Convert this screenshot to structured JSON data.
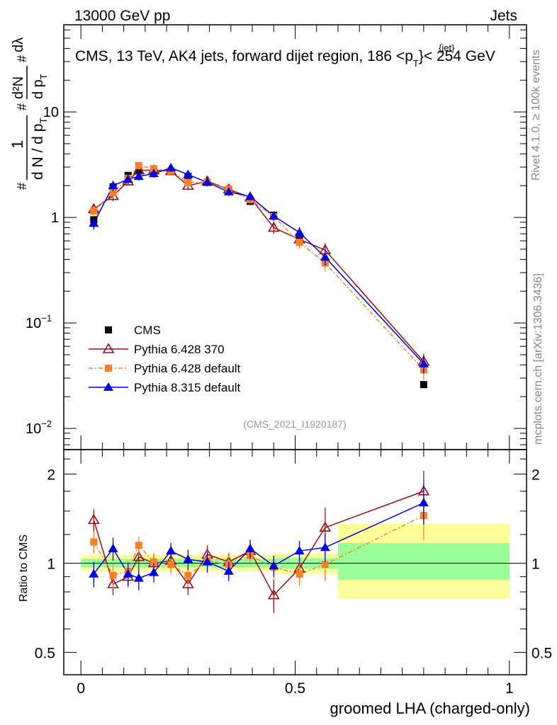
{
  "header": {
    "left": "13000 GeV pp",
    "right": "Jets"
  },
  "side": {
    "rivet": "Rivet 4.1.0, ≥ 100k events",
    "mcplots": "mcplots.cern.ch [arXiv:1306.3436]"
  },
  "ylabel_main": {
    "num": "1",
    "den": "d N / d p",
    "den_sub": "T",
    "deriv_num": "d²N",
    "deriv_den": "d p",
    "deriv_den_sub": "T",
    "lambda": "dλ",
    "hash": "#"
  },
  "chart_data": [
    {
      "id": "main",
      "type": "line",
      "yscale": "log",
      "title": "CMS, 13 TeV, AK4 jets, forward dijet region, 186 <p",
      "title_sup": "{jet}",
      "title_sub": "T",
      "title_tail": "}< 254 GeV",
      "watermark": "(CMS_2021_I1920187)",
      "xlim": [
        -0.04,
        1.04
      ],
      "ylim": [
        0.0063,
        67
      ],
      "ytick_labels": [
        {
          "base": "10",
          "exp": "−2",
          "value": 0.01
        },
        {
          "base": "10",
          "exp": "−1",
          "value": 0.1
        },
        {
          "base": "1",
          "exp": "",
          "value": 1
        },
        {
          "base": "10",
          "exp": "",
          "value": 10
        }
      ],
      "legend": [
        {
          "label": "CMS",
          "series": "cms"
        },
        {
          "label": "Pythia 6.428 370",
          "series": "p370"
        },
        {
          "label": "Pythia 6.428 default",
          "series": "p6def"
        },
        {
          "label": "Pythia 8.315 default",
          "series": "p8"
        }
      ],
      "x": [
        0.03,
        0.075,
        0.11,
        0.135,
        0.17,
        0.21,
        0.25,
        0.295,
        0.345,
        0.395,
        0.45,
        0.51,
        0.57,
        0.8
      ],
      "series": [
        {
          "name": "CMS",
          "key": "cms",
          "color": "#000000",
          "marker": "square",
          "values": [
            0.95,
            1.95,
            2.5,
            2.75,
            2.85,
            2.75,
            2.45,
            2.15,
            1.85,
            1.42,
            1.05,
            0.65,
            0.38,
            0.026
          ]
        },
        {
          "name": "Pythia 6.428 370",
          "key": "p370",
          "color": "#9b0f1a",
          "marker": "triangle-open",
          "values": [
            1.2,
            1.6,
            2.2,
            2.8,
            2.8,
            2.75,
            2.0,
            2.2,
            1.85,
            1.55,
            0.8,
            0.62,
            0.49,
            0.043
          ],
          "err": [
            0.15,
            0.18,
            0.2,
            0.25,
            0.22,
            0.22,
            0.18,
            0.18,
            0.15,
            0.13,
            0.1,
            0.08,
            0.08,
            0.008
          ]
        },
        {
          "name": "Pythia 6.428 default",
          "key": "p6def",
          "color": "#ff7f27",
          "marker": "square",
          "values": [
            1.15,
            1.72,
            2.35,
            3.1,
            2.9,
            2.75,
            2.15,
            2.15,
            1.85,
            1.48,
            1.02,
            0.58,
            0.37,
            0.036
          ],
          "err": [
            0.13,
            0.17,
            0.2,
            0.25,
            0.22,
            0.2,
            0.18,
            0.18,
            0.15,
            0.13,
            0.1,
            0.07,
            0.06,
            0.007
          ]
        },
        {
          "name": "Pythia 8.315 default",
          "key": "p8",
          "color": "#0000e6",
          "marker": "triangle",
          "values": [
            0.88,
            2.0,
            2.3,
            2.45,
            2.6,
            2.95,
            2.55,
            2.15,
            1.75,
            1.58,
            1.03,
            0.72,
            0.42,
            0.041
          ],
          "err": [
            0.11,
            0.22,
            0.2,
            0.22,
            0.22,
            0.25,
            0.2,
            0.18,
            0.15,
            0.14,
            0.1,
            0.09,
            0.07,
            0.008
          ]
        }
      ]
    },
    {
      "id": "ratio",
      "type": "line",
      "yscale": "log",
      "ylabel": "Ratio to CMS",
      "xlabel": "groomed LHA (charged-only)",
      "xlim": [
        -0.04,
        1.04
      ],
      "ylim": [
        0.42,
        2.42
      ],
      "ytick_labels": [
        {
          "label": "0.5",
          "value": 0.5
        },
        {
          "label": "1",
          "value": 1
        },
        {
          "label": "2",
          "value": 2
        }
      ],
      "xtick_labels": [
        {
          "label": "0",
          "value": 0
        },
        {
          "label": "0.5",
          "value": 0.5
        },
        {
          "label": "1",
          "value": 1
        }
      ],
      "bands": [
        {
          "x0": 0.0,
          "x1": 0.45,
          "yellow": [
            0.94,
            1.07
          ],
          "green": [
            0.97,
            1.035
          ]
        },
        {
          "x0": 0.45,
          "x1": 0.6,
          "yellow": [
            0.92,
            1.08
          ],
          "green": [
            0.96,
            1.04
          ]
        },
        {
          "x0": 0.6,
          "x1": 1.0,
          "yellow": [
            0.76,
            1.36
          ],
          "green": [
            0.88,
            1.17
          ]
        }
      ],
      "band_colors": {
        "yellow": "#ffff99",
        "green": "#99ff99"
      },
      "x": [
        0.03,
        0.075,
        0.11,
        0.135,
        0.17,
        0.21,
        0.25,
        0.295,
        0.345,
        0.395,
        0.45,
        0.51,
        0.57,
        0.8
      ],
      "series": [
        {
          "name": "Pythia 6.428 370",
          "key": "p370",
          "color": "#9b0f1a",
          "marker": "triangle-open",
          "values": [
            1.4,
            0.85,
            0.9,
            1.05,
            1.0,
            1.02,
            0.85,
            1.07,
            1.01,
            1.1,
            0.78,
            0.96,
            1.32,
            1.75
          ],
          "err": [
            0.12,
            0.07,
            0.07,
            0.08,
            0.07,
            0.07,
            0.07,
            0.08,
            0.07,
            0.07,
            0.1,
            0.08,
            0.22,
            0.3
          ]
        },
        {
          "name": "Pythia 6.428 default",
          "key": "p6def",
          "color": "#ff7f27",
          "marker": "square",
          "values": [
            1.18,
            0.91,
            0.94,
            1.15,
            1.01,
            0.99,
            0.91,
            1.02,
            0.99,
            1.06,
            0.97,
            0.92,
            0.99,
            1.45
          ],
          "err": [
            0.1,
            0.09,
            0.08,
            0.08,
            0.07,
            0.07,
            0.08,
            0.08,
            0.07,
            0.07,
            0.08,
            0.08,
            0.12,
            0.25
          ]
        },
        {
          "name": "Pythia 8.315 default",
          "key": "p8",
          "color": "#0000e6",
          "marker": "triangle",
          "values": [
            0.92,
            1.12,
            0.92,
            0.89,
            0.93,
            1.1,
            1.03,
            1.01,
            0.94,
            1.12,
            0.98,
            1.1,
            1.13,
            1.6
          ],
          "err": [
            0.09,
            0.1,
            0.08,
            0.08,
            0.07,
            0.07,
            0.08,
            0.08,
            0.07,
            0.08,
            0.08,
            0.09,
            0.12,
            0.25
          ]
        }
      ]
    }
  ]
}
